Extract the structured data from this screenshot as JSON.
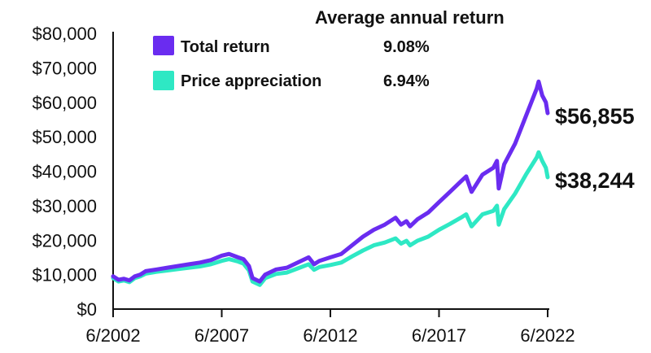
{
  "chart_data": {
    "type": "line",
    "title": "",
    "xlabel": "",
    "ylabel": "",
    "legend_title": "Average annual return",
    "legend_placement": "top-left",
    "grid": false,
    "ylim": [
      0,
      80000
    ],
    "yticks": [
      "$0",
      "$10,000",
      "$20,000",
      "$30,000",
      "$40,000",
      "$50,000",
      "$60,000",
      "$70,000",
      "$80,000"
    ],
    "xlim": [
      "2002-06",
      "2022-06"
    ],
    "xticks": [
      "6/2002",
      "6/2007",
      "6/2012",
      "6/2017",
      "6/2022"
    ],
    "series": [
      {
        "name": "Total return",
        "annual_return": "9.08%",
        "end_label": "$56,855",
        "color": "#6a2cf0",
        "x": [
          "2002-06",
          "2002-09",
          "2002-12",
          "2003-03",
          "2003-06",
          "2003-09",
          "2003-12",
          "2004-06",
          "2004-12",
          "2005-06",
          "2005-12",
          "2006-06",
          "2006-12",
          "2007-06",
          "2007-10",
          "2008-03",
          "2008-06",
          "2008-09",
          "2008-11",
          "2009-03",
          "2009-06",
          "2009-12",
          "2010-06",
          "2010-12",
          "2011-06",
          "2011-09",
          "2011-12",
          "2012-06",
          "2012-12",
          "2013-06",
          "2013-12",
          "2014-06",
          "2014-12",
          "2015-06",
          "2015-09",
          "2015-12",
          "2016-02",
          "2016-06",
          "2016-12",
          "2017-06",
          "2017-12",
          "2018-06",
          "2018-09",
          "2018-12",
          "2019-06",
          "2019-12",
          "2020-02",
          "2020-03",
          "2020-06",
          "2020-12",
          "2021-06",
          "2021-12",
          "2022-01",
          "2022-03",
          "2022-05",
          "2022-06"
        ],
        "values": [
          9500,
          8500,
          8800,
          8300,
          9500,
          10000,
          11000,
          11500,
          12000,
          12500,
          13000,
          13500,
          14200,
          15500,
          16000,
          15000,
          14500,
          12500,
          9000,
          8000,
          10000,
          11500,
          12000,
          13500,
          15000,
          13000,
          14000,
          15000,
          16000,
          18500,
          21000,
          23000,
          24500,
          26500,
          24500,
          25500,
          24000,
          26000,
          28000,
          31000,
          34000,
          37000,
          38500,
          34000,
          39000,
          41000,
          43000,
          35000,
          42000,
          48000,
          56000,
          64000,
          66000,
          62000,
          60000,
          56855
        ]
      },
      {
        "name": "Price appreciation",
        "annual_return": "6.94%",
        "end_label": "$38,244",
        "color": "#2ee8c4",
        "x": [
          "2002-06",
          "2002-09",
          "2002-12",
          "2003-03",
          "2003-06",
          "2003-09",
          "2003-12",
          "2004-06",
          "2004-12",
          "2005-06",
          "2005-12",
          "2006-06",
          "2006-12",
          "2007-06",
          "2007-10",
          "2008-03",
          "2008-06",
          "2008-09",
          "2008-11",
          "2009-03",
          "2009-06",
          "2009-12",
          "2010-06",
          "2010-12",
          "2011-06",
          "2011-09",
          "2011-12",
          "2012-06",
          "2012-12",
          "2013-06",
          "2013-12",
          "2014-06",
          "2014-12",
          "2015-06",
          "2015-09",
          "2015-12",
          "2016-02",
          "2016-06",
          "2016-12",
          "2017-06",
          "2017-12",
          "2018-06",
          "2018-09",
          "2018-12",
          "2019-06",
          "2019-12",
          "2020-02",
          "2020-03",
          "2020-06",
          "2020-12",
          "2021-06",
          "2021-12",
          "2022-01",
          "2022-03",
          "2022-05",
          "2022-06"
        ],
        "values": [
          9000,
          8000,
          8300,
          7800,
          9000,
          9500,
          10300,
          10800,
          11200,
          11600,
          12000,
          12400,
          13000,
          14000,
          14500,
          13800,
          13200,
          11200,
          8000,
          7000,
          9000,
          10200,
          10600,
          11800,
          13000,
          11400,
          12200,
          12800,
          13500,
          15300,
          17000,
          18500,
          19300,
          20500,
          19000,
          19800,
          18500,
          19800,
          21000,
          23000,
          24700,
          26500,
          27500,
          24000,
          27500,
          28500,
          30000,
          24500,
          29000,
          33500,
          39000,
          44000,
          45500,
          43000,
          41000,
          38244
        ]
      }
    ]
  }
}
